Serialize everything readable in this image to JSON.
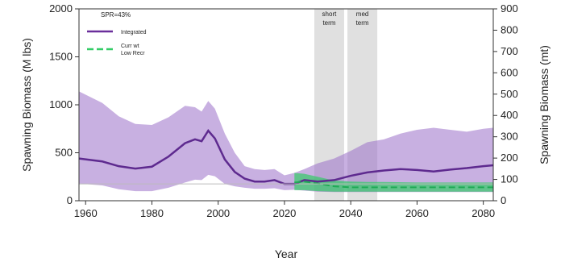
{
  "chart_data": {
    "type": "area",
    "xlabel": "Year",
    "ylabel_left": "Spawning Biomass (M lbs)",
    "ylabel_right": "Spawning Biomass (mt)",
    "annotation": "SPR=43%",
    "xlim": [
      1958,
      2083
    ],
    "ylim_left": [
      0,
      2000
    ],
    "ylim_right": [
      0,
      900
    ],
    "x_ticks": [
      1960,
      1980,
      2000,
      2020,
      2040,
      2060,
      2080
    ],
    "y_ticks_left": [
      0,
      500,
      1000,
      1500,
      2000
    ],
    "y_ticks_right": [
      0,
      100,
      200,
      300,
      400,
      500,
      600,
      700,
      800,
      900
    ],
    "reference_line": 175,
    "periods": [
      {
        "label_line1": "short",
        "label_line2": "term",
        "start": 2029,
        "end": 2038
      },
      {
        "label_line1": "med",
        "label_line2": "term",
        "start": 2039,
        "end": 2048
      }
    ],
    "legend": [
      {
        "label": "Integrated",
        "color": "#6a2f9b",
        "style": "solid"
      },
      {
        "label_line1": "Curr wt",
        "label_line2": "Low Recr",
        "color": "#33cc66",
        "style": "dashed"
      }
    ],
    "series": [
      {
        "name": "Integrated",
        "color": "#6a2f9b",
        "x": [
          1958,
          1965,
          1970,
          1975,
          1980,
          1985,
          1990,
          1993,
          1995,
          1997,
          1999,
          2002,
          2005,
          2008,
          2011,
          2014,
          2017,
          2020,
          2023,
          2026,
          2030,
          2035,
          2040,
          2045,
          2050,
          2055,
          2060,
          2065,
          2070,
          2075,
          2080,
          2083
        ],
        "median": [
          440,
          410,
          360,
          335,
          355,
          460,
          600,
          640,
          620,
          730,
          650,
          430,
          300,
          230,
          200,
          200,
          215,
          175,
          175,
          215,
          200,
          215,
          260,
          295,
          315,
          330,
          320,
          305,
          325,
          340,
          360,
          370
        ],
        "lower": [
          180,
          160,
          120,
          100,
          100,
          135,
          190,
          220,
          215,
          270,
          255,
          175,
          150,
          135,
          125,
          125,
          130,
          110,
          115,
          105,
          95,
          90,
          90,
          90,
          90,
          90,
          90,
          90,
          90,
          90,
          90,
          90
        ],
        "upper": [
          1140,
          1020,
          880,
          800,
          790,
          870,
          990,
          975,
          930,
          1040,
          960,
          700,
          500,
          360,
          330,
          320,
          330,
          265,
          290,
          330,
          390,
          440,
          520,
          610,
          640,
          700,
          740,
          760,
          740,
          720,
          750,
          760
        ]
      },
      {
        "name": "Curr wt Low Recr",
        "color": "#33cc66",
        "x": [
          2023,
          2026,
          2030,
          2035,
          2040,
          2045,
          2050,
          2060,
          2070,
          2083
        ],
        "median": [
          190,
          200,
          180,
          150,
          140,
          140,
          140,
          140,
          140,
          140
        ],
        "lower": [
          110,
          110,
          100,
          95,
          95,
          95,
          95,
          95,
          95,
          95
        ],
        "upper": [
          290,
          280,
          250,
          210,
          200,
          195,
          195,
          190,
          190,
          190
        ]
      }
    ]
  }
}
